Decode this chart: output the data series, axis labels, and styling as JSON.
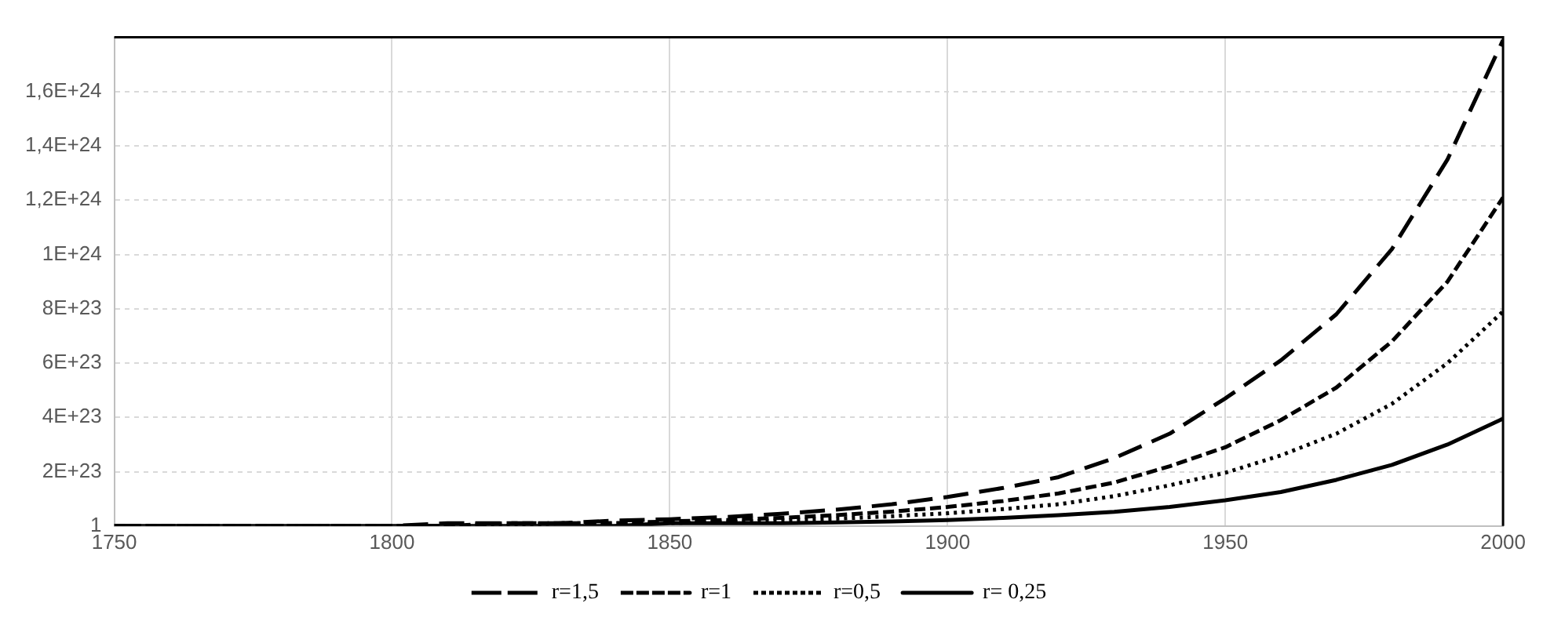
{
  "chart_data": {
    "type": "line",
    "x": [
      1750,
      1760,
      1770,
      1780,
      1790,
      1800,
      1810,
      1820,
      1830,
      1840,
      1850,
      1860,
      1870,
      1880,
      1890,
      1900,
      1910,
      1920,
      1930,
      1940,
      1950,
      1960,
      1970,
      1980,
      1990,
      2000
    ],
    "series": [
      {
        "name": "r=1,5",
        "color": "#000000",
        "line_style": "dashed",
        "values": [
          1,
          1,
          1,
          1,
          1,
          1,
          1e+22,
          1e+22,
          1e+22,
          2e+22,
          2.5e+22,
          3.3e+22,
          4.5e+22,
          6e+22,
          8e+22,
          1.07e+23,
          1.4e+23,
          1.8e+23,
          2.5e+23,
          3.4e+23,
          4.7e+23,
          6.1e+23,
          7.8e+23,
          1.02e+24,
          1.35e+24,
          1.79e+24
        ]
      },
      {
        "name": "r=1",
        "color": "#000000",
        "line_style": "dashed",
        "values": [
          1,
          1,
          1,
          1,
          1,
          1,
          1,
          1e+22,
          1e+22,
          1e+22,
          1.7e+22,
          2.2e+22,
          3e+22,
          4e+22,
          5.3e+22,
          7e+22,
          9.2e+22,
          1.2e+23,
          1.6e+23,
          2.2e+23,
          2.9e+23,
          3.9e+23,
          5.1e+23,
          6.8e+23,
          9e+23,
          1.21e+24
        ]
      },
      {
        "name": "r=0,5",
        "color": "#000000",
        "line_style": "dotted",
        "values": [
          1,
          1,
          1,
          1,
          1,
          1,
          1,
          1,
          1e+22,
          1e+22,
          1.1e+22,
          1.5e+22,
          2e+22,
          2.7e+22,
          3.6e+22,
          4.7e+22,
          6.2e+22,
          8e+22,
          1.1e+23,
          1.5e+23,
          1.96e+23,
          2.6e+23,
          3.4e+23,
          4.5e+23,
          6e+23,
          7.9e+23
        ]
      },
      {
        "name": "r= 0,25",
        "color": "#000000",
        "line_style": "solid",
        "values": [
          1,
          1,
          1,
          1,
          1,
          1,
          1,
          1,
          1,
          1,
          1e+22,
          1e+22,
          1e+22,
          1.3e+22,
          1.7e+22,
          2.2e+22,
          3e+22,
          4e+22,
          5.2e+22,
          7e+22,
          9.5e+22,
          1.25e+23,
          1.7e+23,
          2.25e+23,
          3e+23,
          3.95e+23
        ]
      }
    ],
    "xlim": [
      1750,
      2000
    ],
    "xticks": [
      1750,
      1800,
      1850,
      1900,
      1950,
      2000
    ],
    "ylim": [
      1,
      1.8e+24
    ],
    "yticks": [
      1,
      {
        "value": 2e+23,
        "label": "2E+23"
      },
      {
        "value": 4e+23,
        "label": "4E+23"
      },
      {
        "value": 6e+23,
        "label": "6E+23"
      },
      {
        "value": 8e+23,
        "label": "8E+23"
      },
      {
        "value": 1e+24,
        "label": "1E+24"
      },
      {
        "value": 1.2e+24,
        "label": "1,2E+24"
      },
      {
        "value": 1.4e+24,
        "label": "1,4E+24"
      },
      {
        "value": 1.6e+24,
        "label": "1,6E+24"
      }
    ],
    "grid": true,
    "legend": "bottom",
    "marker": "none"
  }
}
